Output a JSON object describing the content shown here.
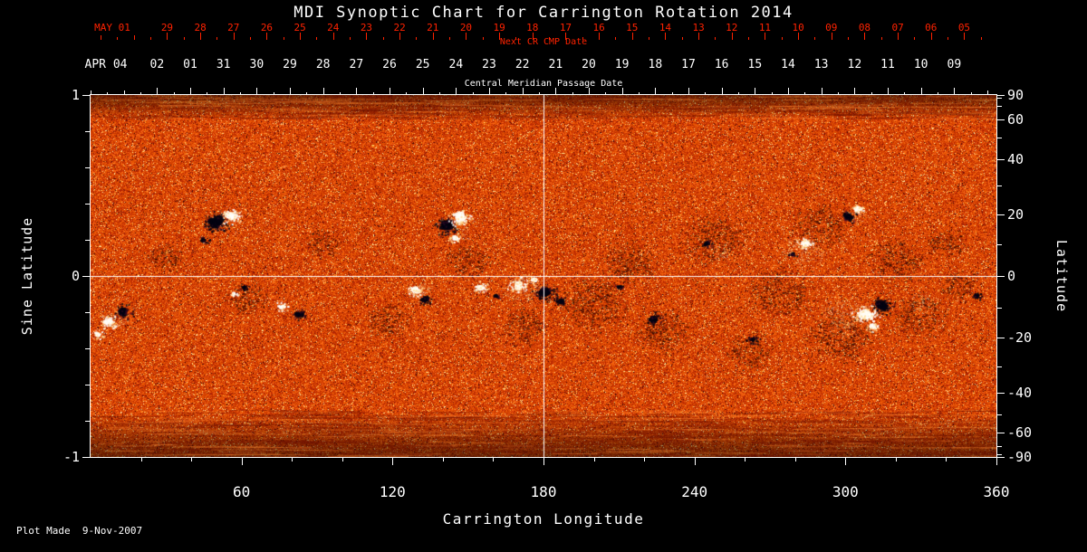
{
  "title": "MDI Synoptic Chart for Carrington Rotation 2014",
  "footer": "Plot Made  9-Nov-2007",
  "colors": {
    "background": "#000000",
    "axis_text": "#ffffff",
    "next_cr_axis": "#ff2200",
    "frame": "#ffffff"
  },
  "chart_data": {
    "type": "heatmap",
    "title": "MDI Synoptic Chart for Carrington Rotation 2014",
    "description": "Solar photospheric magnetic field synoptic map for Carrington rotation 2014; orange-red speckled background with black (negative) and white (positive) magnetic active regions; white crosshair at longitude 180 and sine latitude 0.",
    "x": {
      "label": "Carrington Longitude",
      "range": [
        0,
        360
      ],
      "ticks": [
        60,
        120,
        180,
        240,
        300,
        360
      ]
    },
    "y_left": {
      "label": "Sine Latitude",
      "range": [
        -1,
        1
      ],
      "ticks": [
        "1",
        "0",
        "-1"
      ]
    },
    "y_right": {
      "label": "Latitude",
      "ticks": [
        "90",
        "60",
        "40",
        "20",
        "0",
        "-20",
        "-40",
        "-60",
        "-90"
      ],
      "minor_ticks": [
        10,
        30,
        50,
        70,
        80,
        -10,
        -30,
        -50,
        -70,
        -80
      ]
    },
    "top_axis_next_cr": {
      "label": "Next CR CMP Date",
      "month_label": "MAY 01",
      "days": [
        "29",
        "28",
        "27",
        "26",
        "25",
        "24",
        "23",
        "22",
        "21",
        "20",
        "19",
        "18",
        "17",
        "16",
        "15",
        "14",
        "13",
        "12",
        "11",
        "10",
        "09",
        "08",
        "07",
        "06",
        "05"
      ],
      "first_day_longitude": 30.4,
      "degrees_per_day": 13.2
    },
    "top_axis_cmp": {
      "label": "Central Meridian Passage Date",
      "month_label": "APR 04",
      "days": [
        "02",
        "01",
        "31",
        "30",
        "29",
        "28",
        "27",
        "26",
        "25",
        "24",
        "23",
        "22",
        "21",
        "20",
        "19",
        "18",
        "17",
        "16",
        "15",
        "14",
        "13",
        "12",
        "11",
        "10",
        "09"
      ],
      "first_day_longitude": 26.4,
      "degrees_per_day": 13.2
    },
    "crosshair": {
      "longitude": 180,
      "sine_latitude": 0
    },
    "palette": {
      "base": "#d24000",
      "bright_speck": "#ffdd88",
      "dark_speck": "#5a0e00",
      "negative_polarity": "#000010",
      "positive_polarity": "#ffffff"
    },
    "active_regions": [
      {
        "lon": 50,
        "sin_lat": 0.3,
        "size": 12,
        "polarity": "negative"
      },
      {
        "lon": 56,
        "sin_lat": 0.33,
        "size": 9,
        "polarity": "positive"
      },
      {
        "lon": 45,
        "sin_lat": 0.2,
        "size": 5,
        "polarity": "negative"
      },
      {
        "lon": 61,
        "sin_lat": -0.06,
        "size": 5,
        "polarity": "negative"
      },
      {
        "lon": 57,
        "sin_lat": -0.1,
        "size": 4,
        "polarity": "positive"
      },
      {
        "lon": 7,
        "sin_lat": -0.25,
        "size": 8,
        "polarity": "positive"
      },
      {
        "lon": 13,
        "sin_lat": -0.2,
        "size": 9,
        "polarity": "negative"
      },
      {
        "lon": 3,
        "sin_lat": -0.32,
        "size": 5,
        "polarity": "positive"
      },
      {
        "lon": 76,
        "sin_lat": -0.17,
        "size": 6,
        "polarity": "positive"
      },
      {
        "lon": 83,
        "sin_lat": -0.21,
        "size": 7,
        "polarity": "negative"
      },
      {
        "lon": 129,
        "sin_lat": -0.08,
        "size": 7,
        "polarity": "positive"
      },
      {
        "lon": 133,
        "sin_lat": -0.13,
        "size": 6,
        "polarity": "negative"
      },
      {
        "lon": 141,
        "sin_lat": 0.28,
        "size": 11,
        "polarity": "negative"
      },
      {
        "lon": 147,
        "sin_lat": 0.32,
        "size": 10,
        "polarity": "positive"
      },
      {
        "lon": 145,
        "sin_lat": 0.21,
        "size": 6,
        "polarity": "positive"
      },
      {
        "lon": 155,
        "sin_lat": -0.06,
        "size": 7,
        "polarity": "positive"
      },
      {
        "lon": 161,
        "sin_lat": -0.11,
        "size": 4,
        "polarity": "negative"
      },
      {
        "lon": 170,
        "sin_lat": -0.05,
        "size": 9,
        "polarity": "positive"
      },
      {
        "lon": 176,
        "sin_lat": -0.02,
        "size": 5,
        "polarity": "positive"
      },
      {
        "lon": 181,
        "sin_lat": -0.09,
        "size": 11,
        "polarity": "negative"
      },
      {
        "lon": 187,
        "sin_lat": -0.14,
        "size": 6,
        "polarity": "negative"
      },
      {
        "lon": 210,
        "sin_lat": -0.06,
        "size": 4,
        "polarity": "negative"
      },
      {
        "lon": 224,
        "sin_lat": -0.24,
        "size": 7,
        "polarity": "negative"
      },
      {
        "lon": 245,
        "sin_lat": 0.18,
        "size": 5,
        "polarity": "negative"
      },
      {
        "lon": 263,
        "sin_lat": -0.35,
        "size": 6,
        "polarity": "negative"
      },
      {
        "lon": 279,
        "sin_lat": 0.12,
        "size": 4,
        "polarity": "negative"
      },
      {
        "lon": 284,
        "sin_lat": 0.18,
        "size": 7,
        "polarity": "positive"
      },
      {
        "lon": 301,
        "sin_lat": 0.33,
        "size": 7,
        "polarity": "negative"
      },
      {
        "lon": 305,
        "sin_lat": 0.37,
        "size": 6,
        "polarity": "positive"
      },
      {
        "lon": 308,
        "sin_lat": -0.21,
        "size": 11,
        "polarity": "positive"
      },
      {
        "lon": 315,
        "sin_lat": -0.16,
        "size": 10,
        "polarity": "negative"
      },
      {
        "lon": 311,
        "sin_lat": -0.28,
        "size": 6,
        "polarity": "positive"
      },
      {
        "lon": 352,
        "sin_lat": -0.11,
        "size": 5,
        "polarity": "negative"
      }
    ],
    "network_patches": [
      {
        "lon": 200,
        "sin_lat": -0.15,
        "radius": 45
      },
      {
        "lon": 214,
        "sin_lat": 0.08,
        "radius": 36
      },
      {
        "lon": 228,
        "sin_lat": -0.3,
        "radius": 36
      },
      {
        "lon": 248,
        "sin_lat": 0.2,
        "radius": 42
      },
      {
        "lon": 262,
        "sin_lat": -0.42,
        "radius": 30
      },
      {
        "lon": 274,
        "sin_lat": -0.1,
        "radius": 42
      },
      {
        "lon": 290,
        "sin_lat": 0.27,
        "radius": 36
      },
      {
        "lon": 298,
        "sin_lat": -0.33,
        "radius": 42
      },
      {
        "lon": 320,
        "sin_lat": 0.08,
        "radius": 36
      },
      {
        "lon": 330,
        "sin_lat": -0.22,
        "radius": 36
      },
      {
        "lon": 340,
        "sin_lat": 0.18,
        "radius": 26
      },
      {
        "lon": 172,
        "sin_lat": -0.28,
        "radius": 30
      },
      {
        "lon": 150,
        "sin_lat": 0.08,
        "radius": 28
      },
      {
        "lon": 118,
        "sin_lat": -0.25,
        "radius": 28
      },
      {
        "lon": 92,
        "sin_lat": 0.18,
        "radius": 24
      },
      {
        "lon": 62,
        "sin_lat": -0.12,
        "radius": 28
      },
      {
        "lon": 30,
        "sin_lat": 0.1,
        "radius": 24
      },
      {
        "lon": 345,
        "sin_lat": -0.05,
        "radius": 24
      }
    ],
    "bright_patches": [
      {
        "lon": 283,
        "sin_lat": 0.15,
        "radius": 30
      },
      {
        "lon": 300,
        "sin_lat": -0.22,
        "radius": 34
      },
      {
        "lon": 145,
        "sin_lat": 0.27,
        "radius": 24
      },
      {
        "lon": 172,
        "sin_lat": -0.06,
        "radius": 28
      },
      {
        "lon": 52,
        "sin_lat": 0.3,
        "radius": 20
      },
      {
        "lon": 10,
        "sin_lat": -0.23,
        "radius": 20
      },
      {
        "lon": 130,
        "sin_lat": -0.09,
        "radius": 20
      },
      {
        "lon": 304,
        "sin_lat": 0.34,
        "radius": 16
      },
      {
        "lon": 250,
        "sin_lat": 0.14,
        "radius": 16
      },
      {
        "lon": 330,
        "sin_lat": -0.15,
        "radius": 18
      }
    ]
  }
}
